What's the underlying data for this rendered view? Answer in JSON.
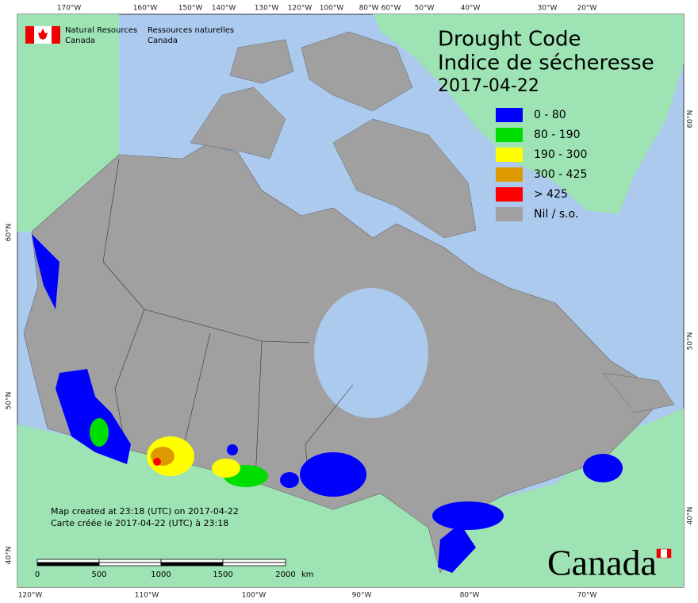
{
  "header": {
    "agency_en": [
      "Natural Resources",
      "Canada"
    ],
    "agency_fr": [
      "Ressources naturelles",
      "Canada"
    ]
  },
  "title": [
    "Drought Code",
    "Indice de sécheresse"
  ],
  "date": "2017-04-22",
  "legend": [
    {
      "label": "0 - 80",
      "color": "#0000ff"
    },
    {
      "label": "80 - 190",
      "color": "#00dd00"
    },
    {
      "label": "190 - 300",
      "color": "#ffff00"
    },
    {
      "label": "300 - 425",
      "color": "#dd9900"
    },
    {
      "label": "> 425",
      "color": "#ff0000"
    },
    {
      "label": "Nil / s.o.",
      "color": "#a0a0a0"
    }
  ],
  "graticule": {
    "top": [
      "170°W",
      "160°W",
      "150°W",
      "140°W",
      "130°W",
      "120°W",
      "100°W",
      "80°W",
      "60°W",
      "50°W",
      "40°W",
      "30°W",
      "20°W"
    ],
    "bottom": [
      "120°W",
      "110°W",
      "100°W",
      "90°W",
      "80°W",
      "70°W"
    ],
    "left": [
      "60°N",
      "50°N",
      "40°N"
    ],
    "right": [
      "60°N",
      "50°N",
      "40°N"
    ]
  },
  "notes": [
    "Map created at 23:18 (UTC) on 2017-04-22",
    "Carte créée le 2017-04-22 (UTC) à 23:18"
  ],
  "scale": {
    "labels": [
      "0",
      "500",
      "1000",
      "1500",
      "2000"
    ],
    "unit": "km"
  },
  "wordmark": "Canada"
}
